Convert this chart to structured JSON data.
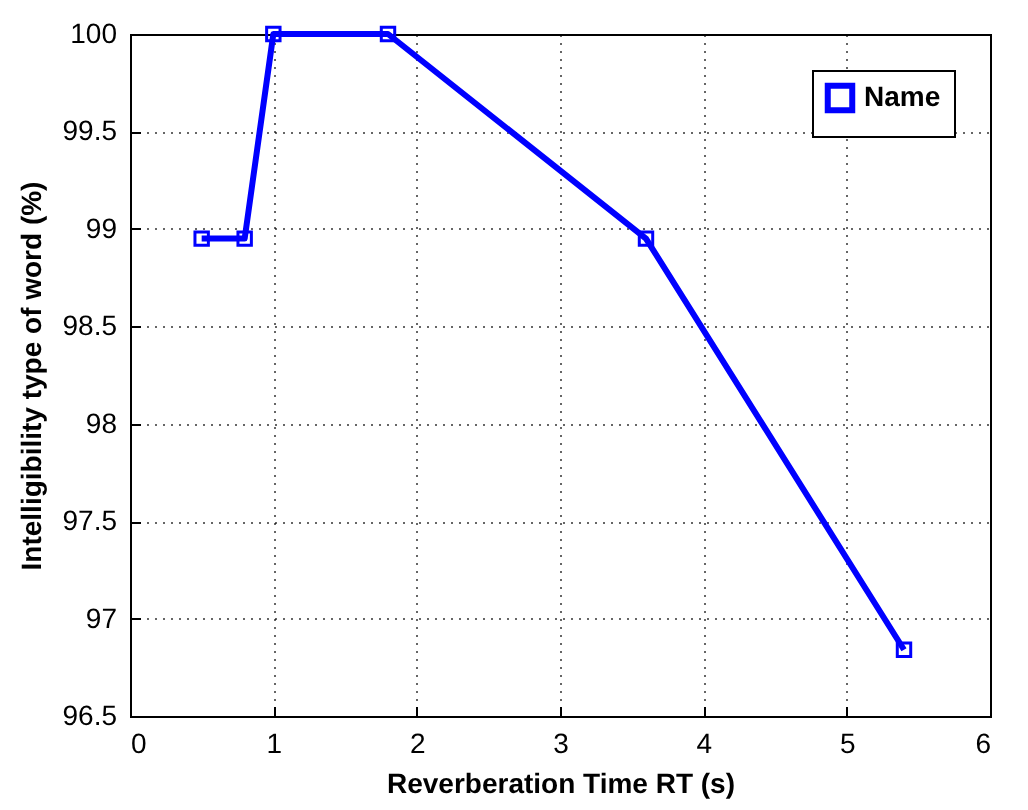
{
  "chart_data": {
    "type": "line",
    "xlabel": "Reverberation Time RT (s)",
    "ylabel": "Intelligibility type of word (%)",
    "x": [
      0.5,
      0.8,
      1,
      1.8,
      3.6,
      5.4
    ],
    "series": [
      {
        "name": "Name",
        "color": "#0000ff",
        "values": [
          98.95,
          98.95,
          100,
          100,
          98.95,
          96.84
        ]
      }
    ],
    "xlim": [
      0,
      6
    ],
    "xticks": [
      0,
      1,
      2,
      3,
      4,
      5,
      6
    ],
    "ylim": [
      96.5,
      100
    ],
    "yticks": [
      96.5,
      97,
      97.5,
      98,
      98.5,
      99,
      99.5,
      100
    ],
    "grid": true,
    "legend": "top right",
    "marker": "square",
    "line_style": "solid"
  }
}
